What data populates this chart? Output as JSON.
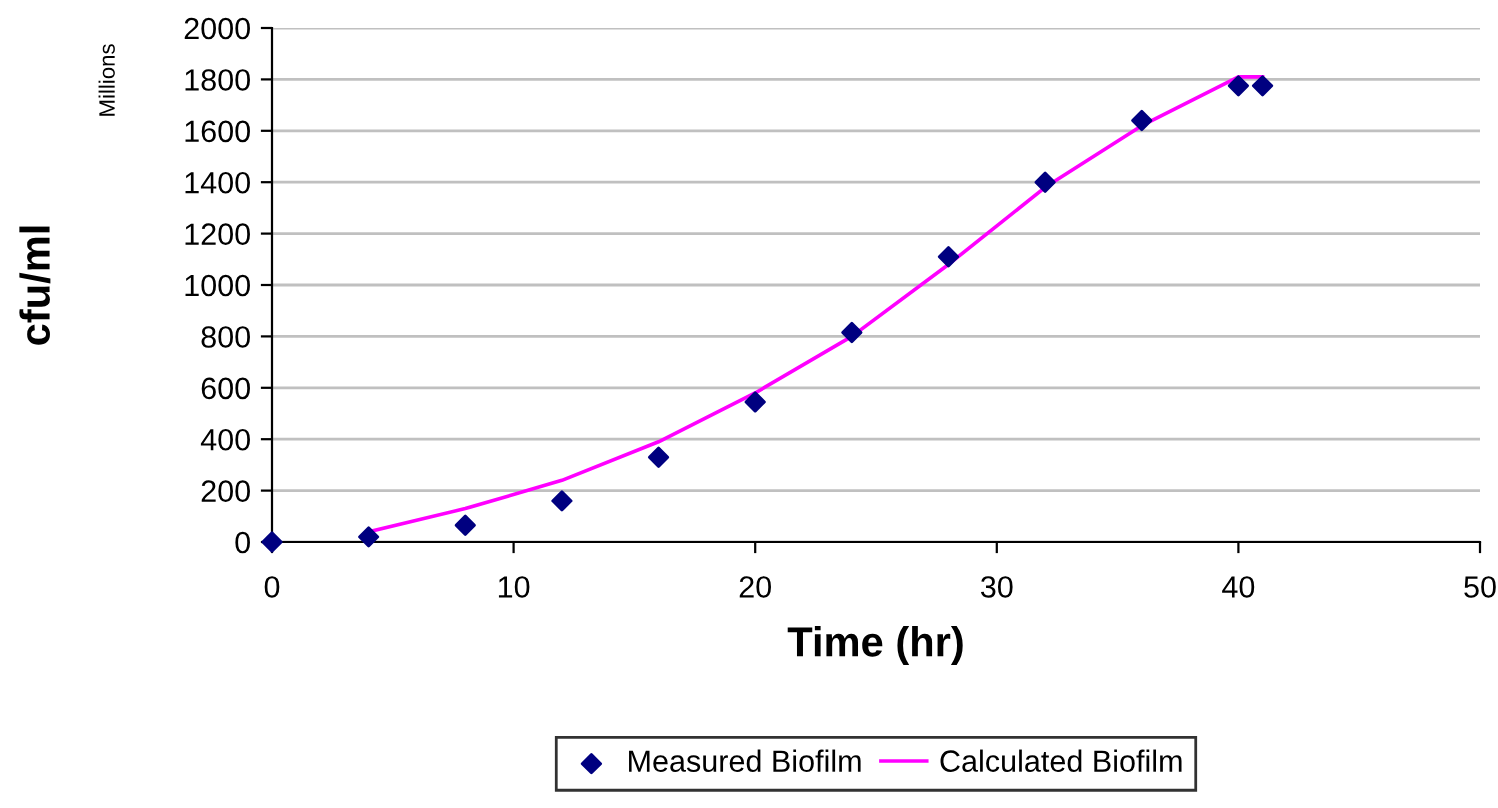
{
  "chart_data": {
    "type": "scatter",
    "xlabel": "Time (hr)",
    "ylabel": "cfu/ml",
    "annotations": [
      "Millions"
    ],
    "xlim": [
      0,
      50
    ],
    "xticks": [
      0,
      10,
      20,
      30,
      40,
      50
    ],
    "ylim": [
      0,
      2000
    ],
    "yticks": [
      0,
      200,
      400,
      600,
      800,
      1000,
      1200,
      1400,
      1600,
      1800,
      2000
    ],
    "grid": "y",
    "legend": "bottom",
    "series": [
      {
        "name": "Measured Biofilm",
        "marker": "diamond",
        "color": "#000080",
        "x": [
          0,
          4,
          8,
          12,
          16,
          20,
          24,
          28,
          32,
          36,
          40,
          41
        ],
        "values": [
          0,
          20,
          65,
          160,
          330,
          545,
          815,
          1110,
          1400,
          1640,
          1775,
          1775
        ]
      },
      {
        "name": "Calculated Biofilm",
        "type": "line",
        "marker": "none",
        "line_style": "solid",
        "color": "#ff00ff",
        "x": [
          4,
          8,
          12,
          16,
          20,
          24,
          28,
          32,
          36,
          40,
          41
        ],
        "values": [
          40,
          130,
          240,
          390,
          580,
          800,
          1080,
          1380,
          1620,
          1810,
          1810
        ]
      }
    ]
  }
}
